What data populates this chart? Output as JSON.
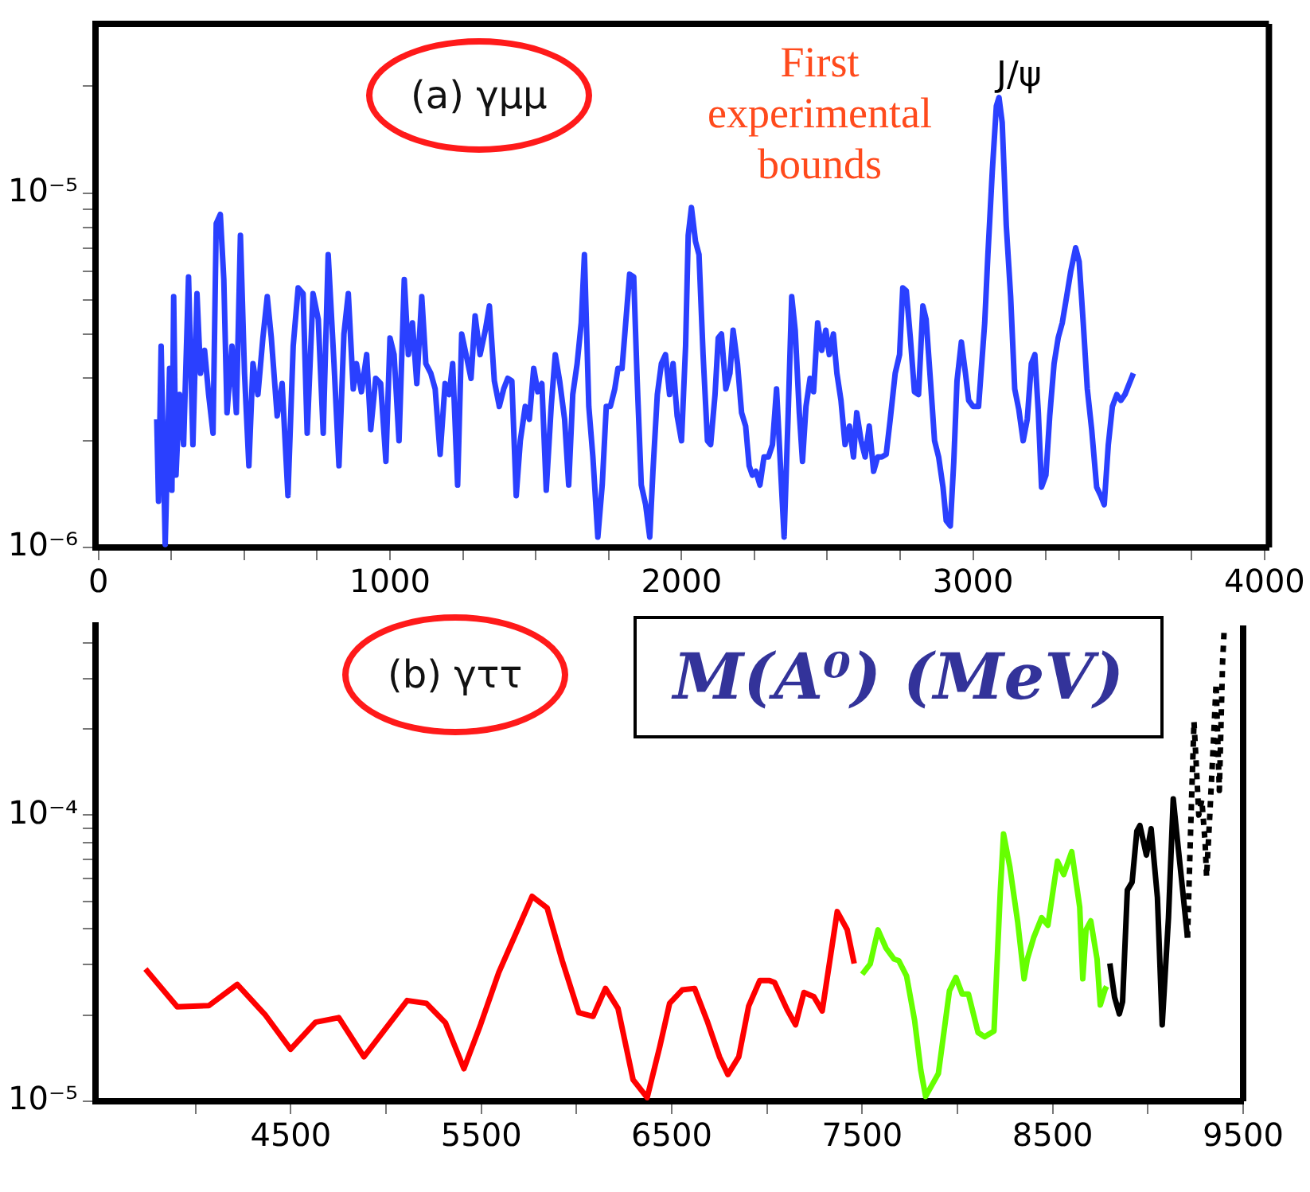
{
  "chart_data": [
    {
      "type": "line",
      "log": true,
      "annotations": [
        "(a) γμμ",
        "First experimental bounds",
        "J/ψ"
      ],
      "xlim": [
        -10,
        4015
      ],
      "xticks": [
        0,
        {
          "value": 250,
          "label": null
        },
        {
          "value": 500,
          "label": null
        },
        {
          "value": 750,
          "label": null
        },
        1000,
        {
          "value": 1250,
          "label": null
        },
        {
          "value": 1500,
          "label": null
        },
        {
          "value": 1750,
          "label": null
        },
        2000,
        {
          "value": 2250,
          "label": null
        },
        {
          "value": 2500,
          "label": null
        },
        {
          "value": 2750,
          "label": null
        },
        3000,
        {
          "value": 3250,
          "label": null
        },
        {
          "value": 3500,
          "label": null
        },
        {
          "value": 3750,
          "label": null
        },
        4000
      ],
      "ylim": [
        1e-06,
        3e-05
      ],
      "yticks": [
        {
          "value": 1e-06,
          "label": "10⁻⁶"
        },
        {
          "value": 2e-06,
          "label": null
        },
        {
          "value": 3e-06,
          "label": null
        },
        {
          "value": 4e-06,
          "label": null
        },
        {
          "value": 5e-06,
          "label": null
        },
        {
          "value": 6e-06,
          "label": null
        },
        {
          "value": 7e-06,
          "label": null
        },
        {
          "value": 8e-06,
          "label": null
        },
        {
          "value": 9e-06,
          "label": null
        },
        {
          "value": 1e-05,
          "label": "10⁻⁵"
        },
        {
          "value": 2e-05,
          "label": null
        }
      ],
      "series": [
        {
          "color": "#2a40ff",
          "x": [
            200,
            206,
            215,
            229,
            244,
            252,
            258,
            266,
            278,
            292,
            309,
            324,
            338,
            350,
            364,
            378,
            393,
            404,
            418,
            430,
            441,
            458,
            473,
            487,
            501,
            516,
            530,
            547,
            564,
            579,
            593,
            613,
            630,
            650,
            668,
            685,
            702,
            716,
            736,
            754,
            771,
            788,
            808,
            825,
            842,
            857,
            874,
            885,
            902,
            920,
            934,
            951,
            968,
            986,
            1000,
            1014,
            1031,
            1049,
            1063,
            1077,
            1092,
            1109,
            1123,
            1140,
            1155,
            1172,
            1189,
            1203,
            1215,
            1232,
            1246,
            1261,
            1278,
            1292,
            1309,
            1327,
            1341,
            1358,
            1375,
            1390,
            1404,
            1418,
            1433,
            1447,
            1464,
            1478,
            1493,
            1507,
            1521,
            1536,
            1553,
            1567,
            1582,
            1599,
            1613,
            1627,
            1642,
            1656,
            1667,
            1682,
            1696,
            1713,
            1728,
            1742,
            1756,
            1771,
            1782,
            1796,
            1822,
            1836,
            1848,
            1862,
            1877,
            1891,
            1902,
            1917,
            1931,
            1945,
            1959,
            1971,
            1985,
            2000,
            2014,
            2023,
            2034,
            2048,
            2060,
            2074,
            2089,
            2100,
            2115,
            2126,
            2137,
            2152,
            2166,
            2177,
            2192,
            2206,
            2220,
            2232,
            2243,
            2255,
            2269,
            2283,
            2298,
            2312,
            2326,
            2341,
            2352,
            2366,
            2378,
            2390,
            2404,
            2415,
            2427,
            2441,
            2453,
            2467,
            2481,
            2495,
            2507,
            2521,
            2533,
            2547,
            2561,
            2576,
            2590,
            2601,
            2616,
            2630,
            2644,
            2659,
            2673,
            2687,
            2702,
            2716,
            2733,
            2748,
            2759,
            2771,
            2785,
            2799,
            2813,
            2828,
            2839,
            2854,
            2868,
            2882,
            2897,
            2908,
            2922,
            2934,
            2945,
            2960,
            2974,
            2985,
            3000,
            3019,
            3040,
            3051,
            3066,
            3080,
            3089,
            3100,
            3114,
            3129,
            3143,
            3157,
            3172,
            3186,
            3200,
            3212,
            3224,
            3235,
            3250,
            3263,
            3278,
            3292,
            3306,
            3321,
            3335,
            3352,
            3364,
            3378,
            3392,
            3407,
            3424,
            3438,
            3450,
            3464,
            3478,
            3493,
            3507,
            3521,
            3536,
            3550
          ],
          "values": [
            2.3e-06,
            1.35e-06,
            3.7e-06,
            1.02e-06,
            3.2e-06,
            1.45e-06,
            5.1e-06,
            1.6e-06,
            2.7e-06,
            1.95e-06,
            5.8e-06,
            1.95e-06,
            5.2e-06,
            3.1e-06,
            3.6e-06,
            2.7e-06,
            2.1e-06,
            8.2e-06,
            8.7e-06,
            5.7e-06,
            2.4e-06,
            3.7e-06,
            2.4e-06,
            7.6e-06,
            3.1e-06,
            1.7e-06,
            3.3e-06,
            2.7e-06,
            3.9e-06,
            5.1e-06,
            3.9e-06,
            2.35e-06,
            2.9e-06,
            1.4e-06,
            3.7e-06,
            5.4e-06,
            5.2e-06,
            2.1e-06,
            5.2e-06,
            4.4e-06,
            2.1e-06,
            6.7e-06,
            3.3e-06,
            1.7e-06,
            4e-06,
            5.2e-06,
            2.8e-06,
            3.3e-06,
            2.75e-06,
            3.5e-06,
            2.15e-06,
            3e-06,
            2.9e-06,
            1.75e-06,
            3.9e-06,
            3.5e-06,
            2e-06,
            5.7e-06,
            3.5e-06,
            4.3e-06,
            2.9e-06,
            5.1e-06,
            3.3e-06,
            3.1e-06,
            2.8e-06,
            1.83e-06,
            2.9e-06,
            2.7e-06,
            3.3e-06,
            1.5e-06,
            4e-06,
            3.5e-06,
            3e-06,
            4.5e-06,
            3.5e-06,
            4.1e-06,
            4.8e-06,
            2.95e-06,
            2.5e-06,
            2.8e-06,
            3e-06,
            2.95e-06,
            1.4e-06,
            2e-06,
            2.5e-06,
            2.3e-06,
            3.2e-06,
            2.75e-06,
            2.9e-06,
            1.45e-06,
            2.5e-06,
            3.5e-06,
            2.95e-06,
            2.3e-06,
            1.5e-06,
            2.7e-06,
            3.3e-06,
            4.3e-06,
            6.7e-06,
            2.5e-06,
            1.8e-06,
            1.07e-06,
            1.5e-06,
            2.5e-06,
            2.5e-06,
            2.8e-06,
            3.2e-06,
            3.2e-06,
            5.9e-06,
            5.8e-06,
            2.95e-06,
            1.5e-06,
            1.32e-06,
            1.07e-06,
            1.64e-06,
            2.7e-06,
            3.3e-06,
            3.5e-06,
            2.7e-06,
            3.3e-06,
            2.35e-06,
            2e-06,
            3.7e-06,
            7.6e-06,
            9.1e-06,
            7.3e-06,
            6.7e-06,
            3.5e-06,
            2e-06,
            1.95e-06,
            2.7e-06,
            3.9e-06,
            4e-06,
            2.8e-06,
            3.1e-06,
            4.1e-06,
            3.3e-06,
            2.4e-06,
            2.2e-06,
            1.7e-06,
            1.6e-06,
            1.64e-06,
            1.5e-06,
            1.8e-06,
            1.8e-06,
            1.95e-06,
            2.8e-06,
            1.6e-06,
            1.07e-06,
            2.4e-06,
            5.1e-06,
            4.1e-06,
            2.4e-06,
            1.75e-06,
            2.5e-06,
            3e-06,
            2.75e-06,
            4.3e-06,
            3.6e-06,
            4.1e-06,
            3.5e-06,
            4e-06,
            3.1e-06,
            2.6e-06,
            1.95e-06,
            2.2e-06,
            1.8e-06,
            2.4e-06,
            2e-06,
            1.8e-06,
            2.2e-06,
            1.64e-06,
            1.8e-06,
            1.8e-06,
            1.83e-06,
            2.3e-06,
            3.1e-06,
            3.5e-06,
            5.4e-06,
            5.3e-06,
            3.9e-06,
            2.75e-06,
            2.7e-06,
            4.8e-06,
            4.4e-06,
            2.95e-06,
            2e-06,
            1.8e-06,
            1.48e-06,
            1.19e-06,
            1.15e-06,
            1.75e-06,
            2.95e-06,
            3.8e-06,
            3.1e-06,
            2.6e-06,
            2.5e-06,
            2.5e-06,
            4.3e-06,
            6.7e-06,
            1.15e-05,
            1.76e-05,
            1.86e-05,
            1.58e-05,
            8.1e-06,
            5.1e-06,
            2.8e-06,
            2.45e-06,
            2e-06,
            2.3e-06,
            3.3e-06,
            3.5e-06,
            2.4e-06,
            1.48e-06,
            1.6e-06,
            2.35e-06,
            3.3e-06,
            3.9e-06,
            4.3e-06,
            5.1e-06,
            6e-06,
            7e-06,
            6.4e-06,
            4.3e-06,
            2.8e-06,
            2.15e-06,
            1.48e-06,
            1.4e-06,
            1.32e-06,
            1.95e-06,
            2.5e-06,
            2.7e-06,
            2.6e-06,
            2.7e-06,
            2.9e-06,
            3.1e-06
          ]
        }
      ]
    },
    {
      "type": "line",
      "log": true,
      "xlabel": "M(A⁰) (MeV)",
      "annotations": [
        "(b) γττ"
      ],
      "xlim": [
        3475,
        9500
      ],
      "xticks": [
        {
          "value": 4000,
          "label": null
        },
        4500,
        {
          "value": 5000,
          "label": null
        },
        5500,
        {
          "value": 6000,
          "label": null
        },
        6500,
        {
          "value": 7000,
          "label": null
        },
        7500,
        {
          "value": 8000,
          "label": null
        },
        8500,
        {
          "value": 9000,
          "label": null
        },
        9500
      ],
      "ylim": [
        1e-05,
        0.00046
      ],
      "yticks": [
        {
          "value": 1e-05,
          "label": "10⁻⁵"
        },
        {
          "value": 2e-05,
          "label": null
        },
        {
          "value": 3e-05,
          "label": null
        },
        {
          "value": 4e-05,
          "label": null
        },
        {
          "value": 5e-05,
          "label": null
        },
        {
          "value": 6e-05,
          "label": null
        },
        {
          "value": 7e-05,
          "label": null
        },
        {
          "value": 8e-05,
          "label": null
        },
        {
          "value": 9e-05,
          "label": null
        },
        {
          "value": 0.0001,
          "label": "10⁻⁴"
        },
        {
          "value": 0.0002,
          "label": null
        },
        {
          "value": 0.0003,
          "label": null
        },
        {
          "value": 0.0004,
          "label": null
        }
      ],
      "series": [
        {
          "color": "#ff0000",
          "x": [
            3737,
            3904,
            4070,
            4219,
            4367,
            4499,
            4630,
            4752,
            4884,
            5111,
            5212,
            5312,
            5409,
            5496,
            5592,
            5767,
            5846,
            5925,
            6012,
            6087,
            6152,
            6218,
            6297,
            6371,
            6437,
            6489,
            6555,
            6620,
            6686,
            6751,
            6795,
            6852,
            6904,
            6962,
            7014,
            7040,
            7106,
            7150,
            7194,
            7246,
            7290,
            7369,
            7421,
            7458
          ],
          "values": [
            2.9e-05,
            2.14e-05,
            2.16e-05,
            2.56e-05,
            2e-05,
            1.52e-05,
            1.89e-05,
            1.96e-05,
            1.43e-05,
            2.25e-05,
            2.2e-05,
            1.88e-05,
            1.3e-05,
            1.85e-05,
            2.82e-05,
            5.2e-05,
            4.74e-05,
            3.1e-05,
            2.04e-05,
            1.98e-05,
            2.48e-05,
            2.11e-05,
            1.19e-05,
            1.03e-05,
            1.55e-05,
            2.2e-05,
            2.45e-05,
            2.48e-05,
            1.91e-05,
            1.43e-05,
            1.24e-05,
            1.43e-05,
            2.15e-05,
            2.64e-05,
            2.64e-05,
            2.6e-05,
            2.09e-05,
            1.85e-05,
            2.4e-05,
            2.32e-05,
            2.07e-05,
            4.6e-05,
            3.98e-05,
            3.03e-05
          ]
        },
        {
          "color": "#66ff00",
          "x": [
            7500,
            7542,
            7583,
            7625,
            7667,
            7692,
            7733,
            7775,
            7808,
            7833,
            7900,
            7958,
            7992,
            8025,
            8058,
            8108,
            8142,
            8192,
            8225,
            8242,
            8275,
            8317,
            8350,
            8367,
            8400,
            8442,
            8475,
            8525,
            8558,
            8600,
            8642,
            8658,
            8675,
            8700,
            8733,
            8750,
            8775,
            8783
          ],
          "values": [
            2.78e-05,
            3.02e-05,
            3.97e-05,
            3.43e-05,
            3.14e-05,
            3.1e-05,
            2.74e-05,
            1.92e-05,
            1.28e-05,
            1.04e-05,
            1.25e-05,
            2.43e-05,
            2.71e-05,
            2.37e-05,
            2.37e-05,
            1.74e-05,
            1.68e-05,
            1.76e-05,
            5.4e-05,
            8.6e-05,
            6.6e-05,
            4.2e-05,
            2.68e-05,
            3.14e-05,
            3.73e-05,
            4.38e-05,
            4.12e-05,
            6.9e-05,
            6.2e-05,
            7.45e-05,
            4.77e-05,
            2.68e-05,
            3.97e-05,
            4.27e-05,
            3.14e-05,
            2.17e-05,
            2.46e-05,
            2.52e-05
          ]
        },
        {
          "color": "#000000",
          "x": [
            8800,
            8825,
            8850,
            8867,
            8892,
            8917,
            8942,
            8958,
            8992,
            9017,
            9050,
            9075,
            9108,
            9133,
            9150,
            9175,
            9208
          ],
          "values": [
            3.03e-05,
            2.31e-05,
            2.02e-05,
            2.23e-05,
            5.47e-05,
            5.83e-05,
            8.8e-05,
            9.2e-05,
            7.25e-05,
            8.96e-05,
            5.15e-05,
            1.85e-05,
            4.38e-05,
            0.000114,
            8.8e-05,
            6.1e-05,
            3.73e-05
          ]
        },
        {
          "color": "#000000",
          "line_style": "dotted",
          "x": [
            9208,
            9225,
            9242,
            9258,
            9267,
            9283,
            9300,
            9308,
            9325,
            9342,
            9358,
            9375,
            9392,
            9400
          ],
          "values": [
            3.73e-05,
            9.2e-05,
            0.000212,
            0.000133,
            0.0001,
            0.000113,
            8.1e-05,
            6.1e-05,
            0.0001,
            0.00017,
            0.000288,
            0.000122,
            0.000342,
            0.000438
          ]
        }
      ]
    }
  ]
}
